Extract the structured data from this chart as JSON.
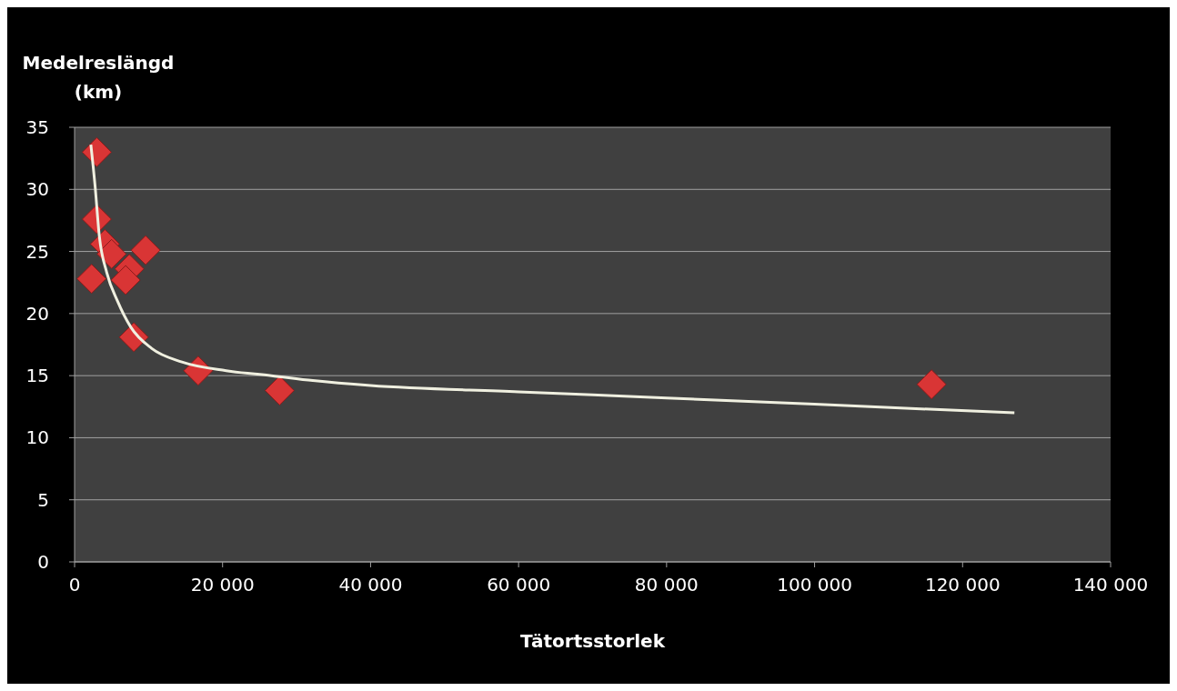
{
  "chart_data": {
    "type": "scatter",
    "ylabel": "Medelreslängd (km)",
    "xlabel": "Tätortsstorlek",
    "xlim": [
      0,
      140000
    ],
    "xticks": [
      {
        "value": 0,
        "label": "0"
      },
      {
        "value": 20000,
        "label": "20 000"
      },
      {
        "value": 40000,
        "label": "40 000"
      },
      {
        "value": 60000,
        "label": "60 000"
      },
      {
        "value": 80000,
        "label": "80 000"
      },
      {
        "value": 100000,
        "label": "100 000"
      },
      {
        "value": 120000,
        "label": "120 000"
      },
      {
        "value": 140000,
        "label": "140 000"
      }
    ],
    "ylim": [
      0,
      35
    ],
    "yticks": [
      0,
      5,
      10,
      15,
      20,
      25,
      30,
      35
    ],
    "grid": "y",
    "series": [
      {
        "color": "#d93535",
        "marker": "diamond",
        "x": [
          3000,
          3000,
          4100,
          5000,
          9600,
          2300,
          7400,
          6900,
          8000,
          16700,
          27700,
          115800
        ],
        "values": [
          33,
          27.6,
          25.6,
          24.8,
          25.1,
          22.8,
          23.6,
          22.7,
          18.1,
          15.4,
          13.8,
          14.3
        ]
      },
      {
        "type": "line",
        "color": "#f0f0e0",
        "marker": "none",
        "line_style": "solid",
        "x": [
          2200,
          2750,
          3350,
          4350,
          5800,
          7600,
          10400,
          14500,
          20500,
          26600,
          32200,
          40000,
          60000,
          80000,
          100000,
          127000
        ],
        "values": [
          33.6,
          30.4,
          26.2,
          23.3,
          21,
          18.9,
          17.2,
          16.1,
          15.4,
          15,
          14.6,
          14.2,
          13.7,
          13.2,
          12.7,
          12
        ]
      }
    ]
  }
}
